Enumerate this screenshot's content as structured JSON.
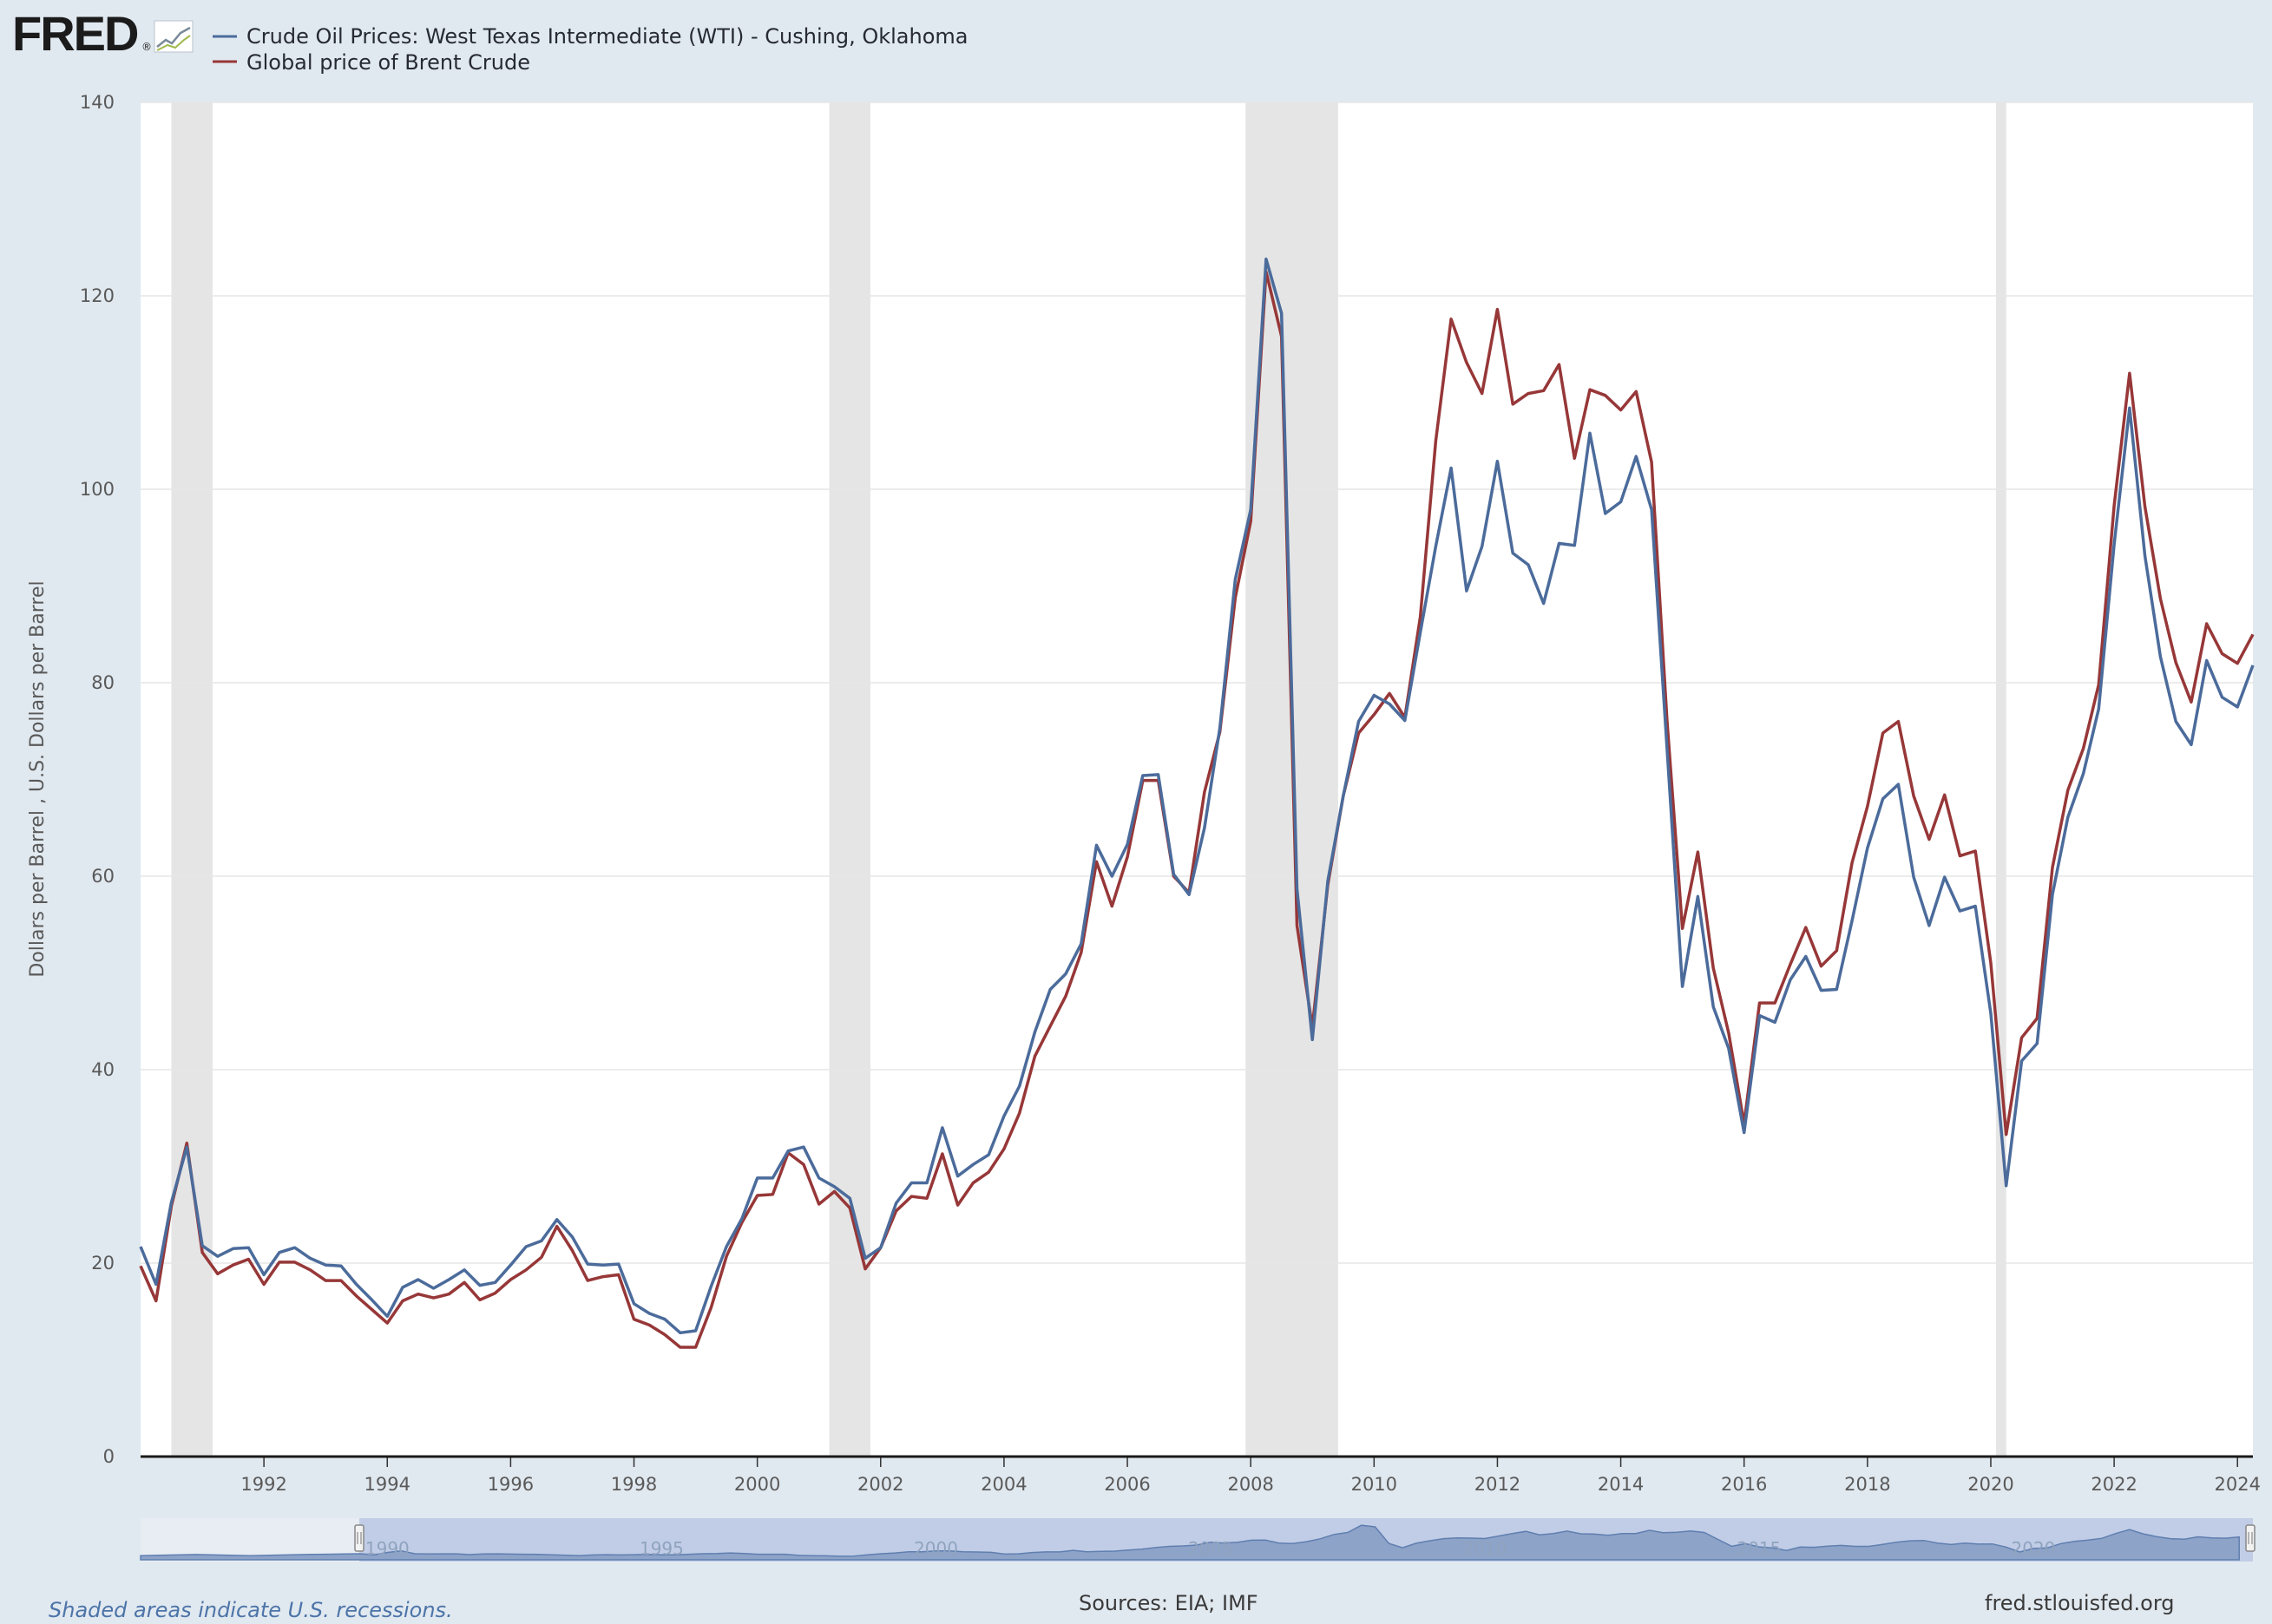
{
  "brand": {
    "logo_text": "FRED",
    "registered": "®"
  },
  "colors": {
    "wti": "#4b6b9b",
    "brent": "#973738",
    "recession": "#e5e5e5",
    "navigator_fill": "#8ea3c8",
    "navigator_bg": "#c1cde6"
  },
  "footer": {
    "recession_note": "Shaded areas indicate U.S. recessions.",
    "sources": "Sources: EIA; IMF",
    "url": "fred.stlouisfed.org"
  },
  "navigator": {
    "labels": [
      "1990",
      "1995",
      "2000",
      "2005",
      "2010",
      "2015",
      "2020"
    ]
  },
  "chart_data": {
    "type": "line",
    "title": "",
    "xlabel": "",
    "ylabel": "Dollars per Barrel , U.S. Dollars per Barrel",
    "ylim": [
      0,
      140
    ],
    "xlim": [
      "1990-01-01",
      "2024-04-01"
    ],
    "yticks": [
      0,
      20,
      40,
      60,
      80,
      100,
      120,
      140
    ],
    "xticks": [
      "1992",
      "1994",
      "1996",
      "1998",
      "2000",
      "2002",
      "2004",
      "2006",
      "2008",
      "2010",
      "2012",
      "2014",
      "2016",
      "2018",
      "2020",
      "2022",
      "2024"
    ],
    "grid": true,
    "legend": "top-left",
    "frequency": "quarterly",
    "recessions": [
      [
        "1990-07-01",
        "1991-03-01"
      ],
      [
        "2001-03-01",
        "2001-11-01"
      ],
      [
        "2007-12-01",
        "2009-06-01"
      ],
      [
        "2020-02-01",
        "2020-04-01"
      ]
    ],
    "x": [
      "1990-Q1",
      "1990-Q2",
      "1990-Q3",
      "1990-Q4",
      "1991-Q1",
      "1991-Q2",
      "1991-Q3",
      "1991-Q4",
      "1992-Q1",
      "1992-Q2",
      "1992-Q3",
      "1992-Q4",
      "1993-Q1",
      "1993-Q2",
      "1993-Q3",
      "1993-Q4",
      "1994-Q1",
      "1994-Q2",
      "1994-Q3",
      "1994-Q4",
      "1995-Q1",
      "1995-Q2",
      "1995-Q3",
      "1995-Q4",
      "1996-Q1",
      "1996-Q2",
      "1996-Q3",
      "1996-Q4",
      "1997-Q1",
      "1997-Q2",
      "1997-Q3",
      "1997-Q4",
      "1998-Q1",
      "1998-Q2",
      "1998-Q3",
      "1998-Q4",
      "1999-Q1",
      "1999-Q2",
      "1999-Q3",
      "1999-Q4",
      "2000-Q1",
      "2000-Q2",
      "2000-Q3",
      "2000-Q4",
      "2001-Q1",
      "2001-Q2",
      "2001-Q3",
      "2001-Q4",
      "2002-Q1",
      "2002-Q2",
      "2002-Q3",
      "2002-Q4",
      "2003-Q1",
      "2003-Q2",
      "2003-Q3",
      "2003-Q4",
      "2004-Q1",
      "2004-Q2",
      "2004-Q3",
      "2004-Q4",
      "2005-Q1",
      "2005-Q2",
      "2005-Q3",
      "2005-Q4",
      "2006-Q1",
      "2006-Q2",
      "2006-Q3",
      "2006-Q4",
      "2007-Q1",
      "2007-Q2",
      "2007-Q3",
      "2007-Q4",
      "2008-Q1",
      "2008-Q2",
      "2008-Q3",
      "2008-Q4",
      "2009-Q1",
      "2009-Q2",
      "2009-Q3",
      "2009-Q4",
      "2010-Q1",
      "2010-Q2",
      "2010-Q3",
      "2010-Q4",
      "2011-Q1",
      "2011-Q2",
      "2011-Q3",
      "2011-Q4",
      "2012-Q1",
      "2012-Q2",
      "2012-Q3",
      "2012-Q4",
      "2013-Q1",
      "2013-Q2",
      "2013-Q3",
      "2013-Q4",
      "2014-Q1",
      "2014-Q2",
      "2014-Q3",
      "2014-Q4",
      "2015-Q1",
      "2015-Q2",
      "2015-Q3",
      "2015-Q4",
      "2016-Q1",
      "2016-Q2",
      "2016-Q3",
      "2016-Q4",
      "2017-Q1",
      "2017-Q2",
      "2017-Q3",
      "2017-Q4",
      "2018-Q1",
      "2018-Q2",
      "2018-Q3",
      "2018-Q4",
      "2019-Q1",
      "2019-Q2",
      "2019-Q3",
      "2019-Q4",
      "2020-Q1",
      "2020-Q2",
      "2020-Q3",
      "2020-Q4",
      "2021-Q1",
      "2021-Q2",
      "2021-Q3",
      "2021-Q4",
      "2022-Q1",
      "2022-Q2",
      "2022-Q3",
      "2022-Q4",
      "2023-Q1",
      "2023-Q2",
      "2023-Q3",
      "2023-Q4",
      "2024-Q1",
      "2024-Q2"
    ],
    "series": [
      {
        "name": "Crude Oil Prices: West Texas Intermediate (WTI) - Cushing, Oklahoma",
        "values": [
          21.7,
          17.8,
          26.3,
          32.0,
          21.8,
          20.7,
          21.5,
          21.6,
          18.8,
          21.1,
          21.6,
          20.5,
          19.8,
          19.7,
          17.8,
          16.2,
          14.5,
          17.5,
          18.3,
          17.4,
          18.3,
          19.3,
          17.7,
          18.0,
          19.8,
          21.7,
          22.3,
          24.5,
          22.7,
          19.9,
          19.8,
          19.9,
          15.8,
          14.8,
          14.2,
          12.8,
          13.0,
          17.6,
          21.7,
          24.6,
          28.8,
          28.8,
          31.6,
          32.0,
          28.8,
          27.9,
          26.7,
          20.5,
          21.6,
          26.2,
          28.3,
          28.3,
          34.0,
          29.0,
          30.2,
          31.2,
          35.2,
          38.3,
          43.9,
          48.3,
          49.9,
          53.0,
          63.2,
          60.0,
          63.3,
          70.4,
          70.5,
          60.2,
          58.1,
          65.0,
          75.3,
          90.7,
          97.9,
          123.8,
          118.2,
          58.7,
          43.1,
          59.5,
          68.3,
          76.0,
          78.7,
          77.8,
          76.1,
          85.2,
          94.1,
          102.2,
          89.5,
          94.1,
          102.9,
          93.4,
          92.2,
          88.2,
          94.4,
          94.2,
          105.8,
          97.5,
          98.7,
          103.4,
          97.9,
          73.2,
          48.6,
          57.9,
          46.5,
          42.2,
          33.5,
          45.6,
          44.9,
          49.3,
          51.7,
          48.2,
          48.3,
          55.4,
          62.9,
          68.0,
          69.5,
          59.9,
          54.9,
          59.9,
          56.4,
          56.9,
          45.8,
          28.0,
          40.9,
          42.7,
          58.1,
          66.1,
          70.6,
          77.3,
          94.3,
          108.4,
          93.1,
          82.7,
          76.0,
          73.6,
          82.3,
          78.5,
          77.5,
          81.8
        ]
      },
      {
        "name": "Global price of Brent Crude",
        "values": [
          19.7,
          16.1,
          25.9,
          32.4,
          21.1,
          18.9,
          19.8,
          20.4,
          17.8,
          20.1,
          20.1,
          19.3,
          18.2,
          18.2,
          16.6,
          15.2,
          13.8,
          16.1,
          16.8,
          16.4,
          16.8,
          18.0,
          16.2,
          16.9,
          18.3,
          19.3,
          20.6,
          23.8,
          21.3,
          18.2,
          18.6,
          18.8,
          14.2,
          13.6,
          12.6,
          11.3,
          11.3,
          15.4,
          20.7,
          24.2,
          27.0,
          27.1,
          31.4,
          30.2,
          26.1,
          27.4,
          25.7,
          19.4,
          21.6,
          25.4,
          26.9,
          26.7,
          31.3,
          26.0,
          28.3,
          29.4,
          31.8,
          35.5,
          41.4,
          44.5,
          47.6,
          52.1,
          61.5,
          56.9,
          62.0,
          69.9,
          69.9,
          60.0,
          58.3,
          68.7,
          74.9,
          88.8,
          96.7,
          122.5,
          115.8,
          54.9,
          44.4,
          59.1,
          68.3,
          74.8,
          76.7,
          78.9,
          76.4,
          86.8,
          105.0,
          117.6,
          113.1,
          109.9,
          118.6,
          108.8,
          109.9,
          110.2,
          112.9,
          103.2,
          110.3,
          109.7,
          108.2,
          110.1,
          102.8,
          76.1,
          54.6,
          62.5,
          50.5,
          43.8,
          34.4,
          46.9,
          46.9,
          50.9,
          54.7,
          50.7,
          52.3,
          61.4,
          67.2,
          74.8,
          76.0,
          68.3,
          63.8,
          68.4,
          62.1,
          62.6,
          51.0,
          33.3,
          43.3,
          45.3,
          60.9,
          68.9,
          73.2,
          79.8,
          98.3,
          112.0,
          98.2,
          88.7,
          82.1,
          78.0,
          86.1,
          83.0,
          82.0,
          85.0
        ]
      }
    ]
  }
}
